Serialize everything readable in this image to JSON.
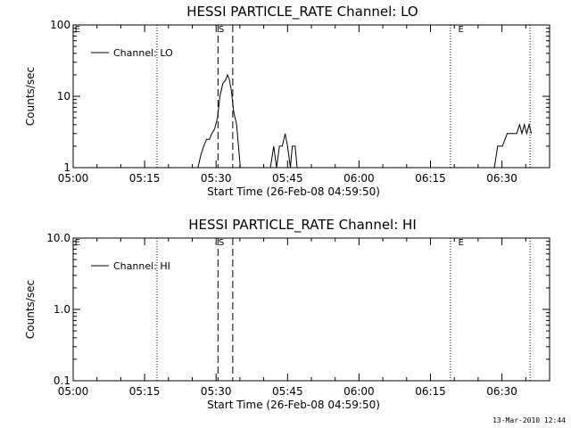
{
  "chart_data": [
    {
      "type": "line",
      "title": "HESSI PARTICLE_RATE Channel: LO",
      "xlabel": "Start Time (26-Feb-08 04:59:50)",
      "ylabel": "Counts/sec",
      "yscale": "log",
      "ylim": [
        1,
        100
      ],
      "xlim_minutes": [
        0,
        100
      ],
      "xticks": [
        {
          "m": 0,
          "label": "05:00"
        },
        {
          "m": 15,
          "label": "05:15"
        },
        {
          "m": 30,
          "label": "05:30"
        },
        {
          "m": 45,
          "label": "05:45"
        },
        {
          "m": 60,
          "label": "06:00"
        },
        {
          "m": 75,
          "label": "06:15"
        },
        {
          "m": 90,
          "label": "06:30"
        }
      ],
      "yticks": [
        {
          "v": 1,
          "label": "1"
        },
        {
          "v": 10,
          "label": "10"
        },
        {
          "v": 100,
          "label": "100"
        }
      ],
      "legend": {
        "label": "Channel: LO",
        "position": "top-left"
      },
      "annotations": [
        {
          "text": "E",
          "m": 0.3
        },
        {
          "text": "S",
          "m": 30.5
        },
        {
          "text": "E",
          "m": 80.8
        }
      ],
      "event_lines": [
        {
          "m": 17.6,
          "style": "dotted"
        },
        {
          "m": 30.4,
          "style": "dashed"
        },
        {
          "m": 33.5,
          "style": "dashed"
        },
        {
          "m": 79.2,
          "style": "dotted"
        },
        {
          "m": 95.9,
          "style": "dotted"
        }
      ],
      "series": [
        {
          "name": "Channel: LO",
          "segments": [
            [
              [
                26.2,
                1
              ],
              [
                26.8,
                1.5
              ],
              [
                27.4,
                2
              ],
              [
                28.0,
                2.5
              ],
              [
                28.6,
                2.5
              ],
              [
                29.1,
                3
              ],
              [
                29.7,
                3.5
              ],
              [
                30.3,
                5
              ],
              [
                30.8,
                10
              ],
              [
                31.4,
                15
              ],
              [
                32.0,
                17
              ],
              [
                32.4,
                20
              ],
              [
                32.8,
                17
              ],
              [
                33.2,
                12
              ],
              [
                33.7,
                6
              ],
              [
                34.3,
                4
              ],
              [
                34.7,
                2
              ],
              [
                35.1,
                1
              ]
            ],
            [
              [
                40.0,
                1
              ],
              [
                41.4,
                1
              ],
              [
                42.1,
                2
              ],
              [
                42.7,
                1
              ],
              [
                43.3,
                2
              ],
              [
                43.9,
                2
              ],
              [
                44.5,
                3
              ],
              [
                45.0,
                2
              ],
              [
                45.6,
                1
              ],
              [
                46.0,
                2
              ],
              [
                46.6,
                2
              ],
              [
                47.0,
                1
              ]
            ],
            [
              [
                88.4,
                1
              ],
              [
                89.1,
                2
              ],
              [
                90.1,
                2
              ],
              [
                91.1,
                3
              ],
              [
                92.1,
                3
              ],
              [
                93.1,
                3
              ],
              [
                93.7,
                4
              ],
              [
                94.2,
                3
              ],
              [
                94.7,
                4
              ],
              [
                95.2,
                3
              ],
              [
                95.7,
                4
              ],
              [
                96.2,
                3
              ]
            ]
          ]
        }
      ]
    },
    {
      "type": "line",
      "title": "HESSI PARTICLE_RATE Channel: HI",
      "xlabel": "Start Time (26-Feb-08 04:59:50)",
      "ylabel": "Counts/sec",
      "yscale": "log",
      "ylim": [
        0.1,
        10
      ],
      "xlim_minutes": [
        0,
        100
      ],
      "xticks": [
        {
          "m": 0,
          "label": "05:00"
        },
        {
          "m": 15,
          "label": "05:15"
        },
        {
          "m": 30,
          "label": "05:30"
        },
        {
          "m": 45,
          "label": "05:45"
        },
        {
          "m": 60,
          "label": "06:00"
        },
        {
          "m": 75,
          "label": "06:15"
        },
        {
          "m": 90,
          "label": "06:30"
        }
      ],
      "yticks": [
        {
          "v": 0.1,
          "label": "0.1"
        },
        {
          "v": 1,
          "label": "1.0"
        },
        {
          "v": 10,
          "label": "10.0"
        }
      ],
      "legend": {
        "label": "Channel: HI",
        "position": "top-left"
      },
      "annotations": [
        {
          "text": "E",
          "m": 0.3
        },
        {
          "text": "S",
          "m": 30.5
        },
        {
          "text": "E",
          "m": 80.8
        }
      ],
      "event_lines": [
        {
          "m": 17.6,
          "style": "dotted"
        },
        {
          "m": 30.4,
          "style": "dashed"
        },
        {
          "m": 33.5,
          "style": "dashed"
        },
        {
          "m": 79.2,
          "style": "dotted"
        },
        {
          "m": 95.9,
          "style": "dotted"
        }
      ],
      "series": [
        {
          "name": "Channel: HI",
          "segments": []
        }
      ]
    }
  ],
  "footer": {
    "timestamp": "13-Mar-2010 12:44"
  }
}
